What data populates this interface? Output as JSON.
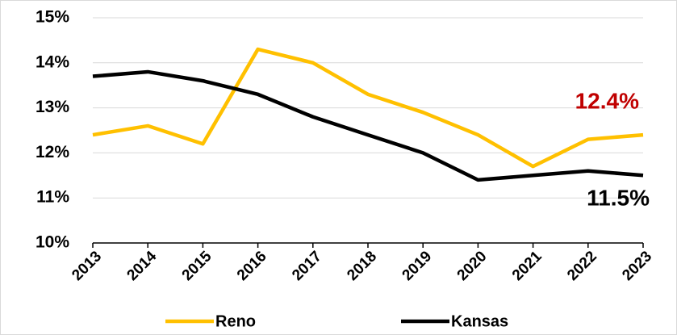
{
  "chart_data": {
    "type": "line",
    "categories": [
      "2013",
      "2014",
      "2015",
      "2016",
      "2017",
      "2018",
      "2019",
      "2020",
      "2021",
      "2022",
      "2023"
    ],
    "series": [
      {
        "name": "Reno",
        "color": "#ffc000",
        "values": [
          12.4,
          12.6,
          12.2,
          14.3,
          14.0,
          13.3,
          12.9,
          12.4,
          11.7,
          12.3,
          12.4
        ],
        "value_labels": [
          null,
          null,
          null,
          null,
          null,
          null,
          null,
          null,
          null,
          null,
          "12.4%"
        ],
        "label_color": "#c00000"
      },
      {
        "name": "Kansas",
        "color": "#000000",
        "values": [
          13.7,
          13.8,
          13.6,
          13.3,
          12.8,
          12.4,
          12.0,
          11.4,
          11.5,
          11.6,
          11.5
        ],
        "value_labels": [
          null,
          null,
          null,
          null,
          null,
          null,
          null,
          null,
          null,
          null,
          "11.5%"
        ],
        "label_color": "#000000"
      }
    ],
    "ylim": [
      10,
      15
    ],
    "yticks": [
      {
        "value": 10,
        "label": "10%"
      },
      {
        "value": 11,
        "label": "11%"
      },
      {
        "value": 12,
        "label": "12%"
      },
      {
        "value": 13,
        "label": "13%"
      },
      {
        "value": 14,
        "label": "14%"
      },
      {
        "value": 15,
        "label": "15%"
      }
    ],
    "grid": true,
    "legend": "bottom"
  }
}
